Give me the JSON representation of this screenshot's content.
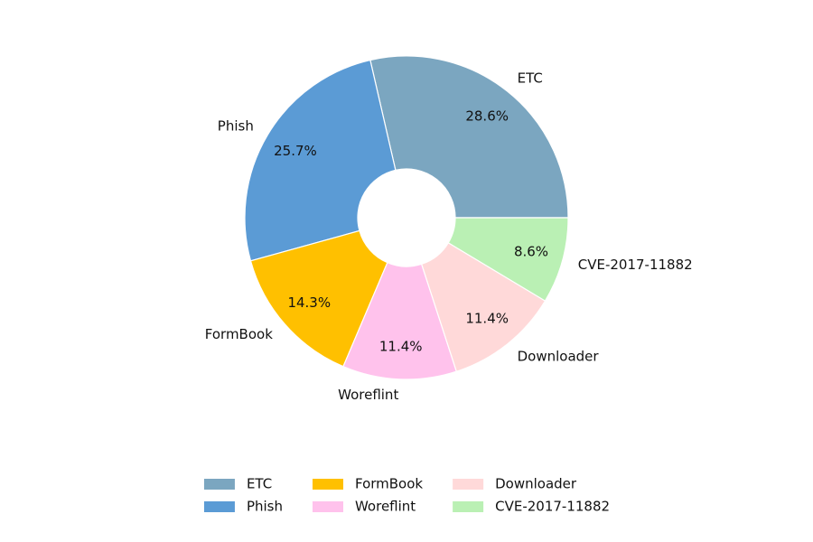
{
  "chart_data": {
    "type": "donut",
    "categories": [
      "ETC",
      "Phish",
      "FormBook",
      "Woreflint",
      "Downloader",
      "CVE-2017-11882"
    ],
    "values": [
      28.6,
      25.7,
      14.3,
      11.4,
      11.4,
      8.6
    ],
    "value_labels": [
      "28.6%",
      "25.7%",
      "14.3%",
      "11.4%",
      "11.4%",
      "8.6%"
    ],
    "colors": [
      "#7ba6c0",
      "#5b9bd5",
      "#ffc000",
      "#ffc2ec",
      "#ffd9d9",
      "#baf0b4"
    ],
    "legend_loc": "lower center",
    "legend_columns": 3
  }
}
